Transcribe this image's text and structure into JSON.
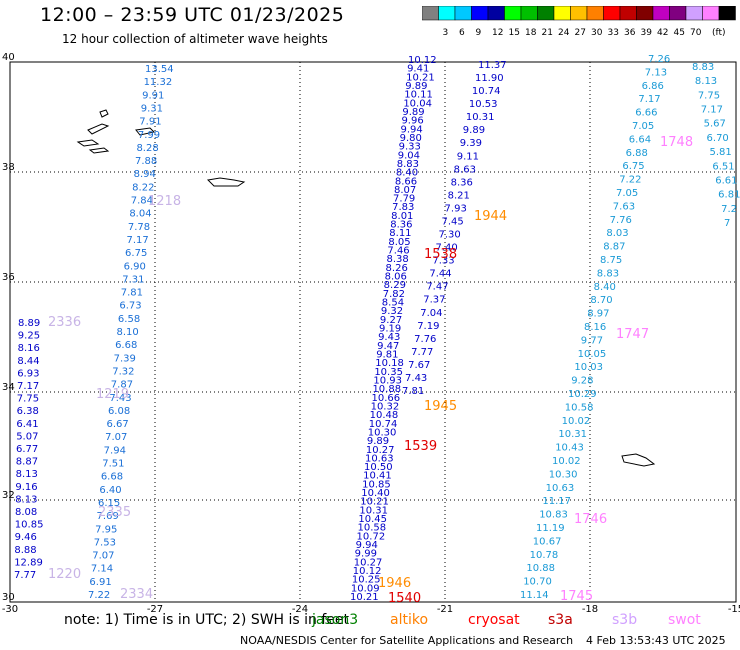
{
  "header": {
    "title": "12:00 – 23:59 UTC 01/23/2025",
    "subtitle": "12 hour collection of altimeter wave heights"
  },
  "legend": {
    "unit": "(ft)",
    "colors": [
      "#808080",
      "#00ffff",
      "#00c8ff",
      "#0000ff",
      "#0000a0",
      "#00ff00",
      "#00c000",
      "#008000",
      "#ffff00",
      "#ffc000",
      "#ff8000",
      "#ff0000",
      "#c00000",
      "#800000",
      "#c000c0",
      "#800080",
      "#d0a0ff",
      "#ff80ff",
      "#000000"
    ],
    "labels": [
      "3",
      "6",
      "9",
      "12",
      "15",
      "18",
      "21",
      "24",
      "27",
      "30",
      "33",
      "36",
      "39",
      "42",
      "45",
      "70"
    ]
  },
  "axes": {
    "x_ticks": [
      "-30",
      "-27",
      "-24",
      "-21",
      "-18",
      "-15"
    ],
    "y_ticks": [
      "40",
      "38",
      "36",
      "34",
      "32",
      "30"
    ]
  },
  "labels_top": {
    "left_col": [
      "13.54",
      "11.32",
      "9.91",
      "9.31",
      "7.91",
      "7.99",
      "8.28",
      "7.88",
      "8.94",
      "8.22",
      "7.84",
      "8.04",
      "7.78",
      "7.17",
      "6.75",
      "6.90",
      "7.31",
      "7.81",
      "6.73",
      "6.58",
      "8.10",
      "6.68",
      "7.39",
      "7.32",
      "7.87",
      "7.43",
      "6.08",
      "6.67",
      "7.07",
      "7.94",
      "7.51",
      "6.68",
      "6.40",
      "6.15",
      "7.69",
      "7.95",
      "7.53",
      "7.07",
      "7.14",
      "6.91",
      "7.22"
    ],
    "far_left": [
      "8.89",
      "9.25",
      "8.16",
      "8.44",
      "6.93",
      "7.17",
      "7.75",
      "6.38",
      "6.41",
      "5.07",
      "6.77",
      "8.87",
      "8.13",
      "9.16",
      "8.13",
      "8.08",
      "10.85",
      "9.46",
      "8.88",
      "12.89",
      "7.77"
    ],
    "center_top": [
      "10.12",
      "9.41",
      "10.21",
      "9.89",
      "10.11",
      "10.04",
      "9.89",
      "9.96",
      "9.94",
      "9.80",
      "9.33",
      "9.04",
      "8.83",
      "8.40",
      "8.66",
      "8.07",
      "7.79",
      "7.83",
      "8.01",
      "8.36",
      "8.11",
      "8.05",
      "7.46",
      "8.38",
      "8.26",
      "8.06",
      "8.29",
      "7.82",
      "8.54",
      "9.32",
      "9.27",
      "9.19",
      "9.43",
      "9.47",
      "9.81",
      "10.18",
      "10.35",
      "10.93",
      "10.88",
      "10.66",
      "10.32",
      "10.48",
      "10.74",
      "10.30",
      "9.89",
      "10.27",
      "10.63",
      "10.50",
      "10.41",
      "10.85",
      "10.40",
      "10.21",
      "10.31",
      "10.45",
      "10.58",
      "10.72",
      "9.94",
      "9.99",
      "10.27",
      "10.12",
      "10.25",
      "10.09",
      "10.21"
    ],
    "center_right": [
      "11.37",
      "11.90",
      "10.74",
      "10.53",
      "10.31",
      "9.89",
      "9.39",
      "9.11",
      "8.63",
      "8.36",
      "8.21",
      "7.93",
      "7.45",
      "7.30",
      "7.40",
      "7.33",
      "7.44",
      "7.47",
      "7.37",
      "7.04",
      "7.19",
      "7.76",
      "7.77",
      "7.67",
      "7.43",
      "7.81"
    ],
    "right_a": [
      "7.26",
      "7.13",
      "6.86",
      "7.17",
      "6.66",
      "7.05",
      "6.64",
      "6.88",
      "6.75",
      "7.22",
      "7.05",
      "7.63",
      "7.76",
      "8.03",
      "8.87",
      "8.75",
      "8.83",
      "8.40",
      "8.70",
      "8.97",
      "8.16",
      "9.77",
      "10.05",
      "10.03",
      "9.28",
      "10.29",
      "10.58",
      "10.02",
      "10.31",
      "10.43",
      "10.02",
      "10.30",
      "10.63",
      "11.17",
      "10.83",
      "11.19",
      "10.67",
      "10.78",
      "10.88",
      "10.70",
      "11.14"
    ],
    "right_b": [
      "8.83",
      "8.13",
      "7.75",
      "7.17",
      "5.67",
      "6.70",
      "5.81",
      "6.51",
      "6.61",
      "6.81",
      "7.2",
      "7"
    ],
    "passes": [
      "1218",
      "2336",
      "1219",
      "2335",
      "1220",
      "2334",
      "1944",
      "1538",
      "1945",
      "1539",
      "1946",
      "1540",
      "1748",
      "1747",
      "1746",
      "1745"
    ]
  },
  "footer": {
    "note": "note:  1) Time is in UTC; 2) SWH is in feet",
    "satellites": [
      {
        "name": "jason3",
        "color": "#008000"
      },
      {
        "name": "altiko",
        "color": "#ff8000"
      },
      {
        "name": "cryosat",
        "color": "#ff0000"
      },
      {
        "name": "s3a",
        "color": "#c00000"
      },
      {
        "name": "s3b",
        "color": "#d0a0ff"
      },
      {
        "name": "swot",
        "color": "#ff80ff"
      }
    ],
    "credit": "NOAA/NESDIS Center for Satellite Applications and Research",
    "timestamp": "4 Feb 13:53:43 UTC 2025"
  }
}
